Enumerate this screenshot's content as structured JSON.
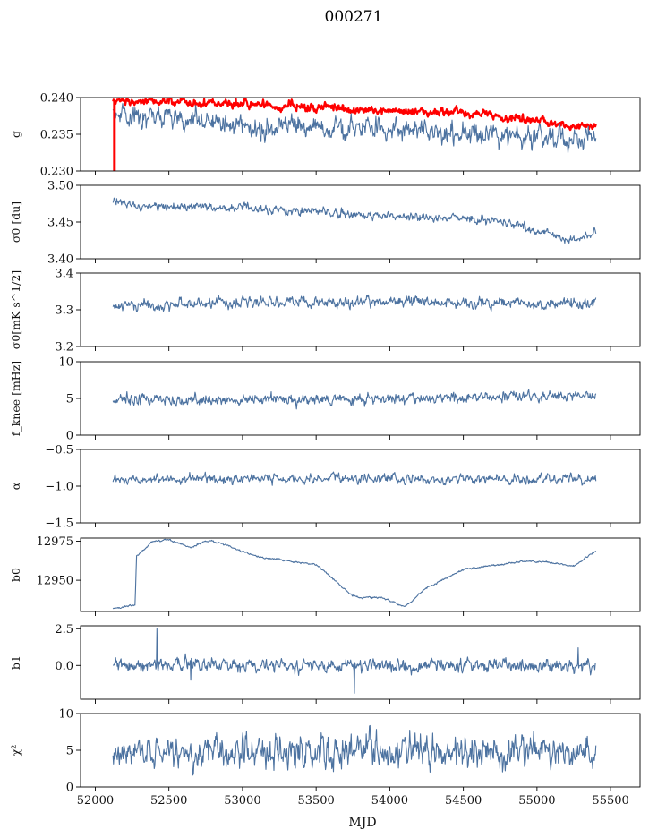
{
  "title": "000271",
  "chart_data": {
    "type": "line",
    "shared_x": true,
    "xlabel": "MJD",
    "xlim": [
      51900,
      55700
    ],
    "xticks": [
      52000,
      52500,
      53000,
      53500,
      54000,
      54500,
      55000,
      55500
    ],
    "xrange_data": [
      52120,
      55400
    ],
    "colors": {
      "series": "#4c72a0",
      "highlight": "#ff0000"
    },
    "panels": [
      {
        "id": "g",
        "ylabel": "g",
        "ylim": [
          0.23,
          0.24
        ],
        "yticks": [
          "0.240",
          "0.235",
          "0.230"
        ],
        "series": [
          {
            "color": "#ff0000",
            "linewidth": 2.2,
            "trend": [
              [
                52120,
                0.2396
              ],
              [
                52500,
                0.2395
              ],
              [
                53000,
                0.2392
              ],
              [
                53500,
                0.2386
              ],
              [
                54000,
                0.2381
              ],
              [
                54500,
                0.2379
              ],
              [
                55000,
                0.2368
              ],
              [
                55200,
                0.2363
              ],
              [
                55400,
                0.2362
              ]
            ],
            "noise": 0.00035
          },
          {
            "color": "#4c72a0",
            "linewidth": 1.1,
            "trend": [
              [
                52120,
                0.2378
              ],
              [
                52500,
                0.2373
              ],
              [
                53000,
                0.2362
              ],
              [
                53500,
                0.236
              ],
              [
                54000,
                0.2355
              ],
              [
                54500,
                0.2352
              ],
              [
                55000,
                0.2345
              ],
              [
                55200,
                0.2342
              ],
              [
                55400,
                0.2346
              ]
            ],
            "noise": 0.0009
          }
        ]
      },
      {
        "id": "sigma0_du",
        "ylabel": "σ0 [du]",
        "ylim": [
          3.4,
          3.5
        ],
        "yticks": [
          "3.50",
          "3.45",
          "3.40"
        ],
        "series": [
          {
            "color": "#4c72a0",
            "linewidth": 1.1,
            "trend": [
              [
                52120,
                3.48
              ],
              [
                52300,
                3.472
              ],
              [
                53000,
                3.47
              ],
              [
                53500,
                3.463
              ],
              [
                54000,
                3.458
              ],
              [
                54500,
                3.455
              ],
              [
                54800,
                3.45
              ],
              [
                55000,
                3.438
              ],
              [
                55250,
                3.425
              ],
              [
                55400,
                3.438
              ]
            ],
            "noise": 0.0035
          }
        ]
      },
      {
        "id": "sigma0_mK",
        "ylabel": "σ0[mK s^1/2]",
        "ylim": [
          3.2,
          3.4
        ],
        "yticks": [
          "3.4",
          "3.3",
          "3.2"
        ],
        "series": [
          {
            "color": "#4c72a0",
            "linewidth": 1.1,
            "trend": [
              [
                52120,
                3.31
              ],
              [
                53000,
                3.32
              ],
              [
                54000,
                3.32
              ],
              [
                55000,
                3.318
              ],
              [
                55400,
                3.32
              ]
            ],
            "noise": 0.009
          }
        ]
      },
      {
        "id": "fknee",
        "ylabel": "f_knee [mHz]",
        "ylim": [
          0,
          10
        ],
        "yticks": [
          "10",
          "5",
          "0"
        ],
        "series": [
          {
            "color": "#4c72a0",
            "linewidth": 1.1,
            "trend": [
              [
                52120,
                4.7
              ],
              [
                53000,
                4.8
              ],
              [
                54000,
                4.9
              ],
              [
                55000,
                5.3
              ],
              [
                55400,
                5.4
              ]
            ],
            "noise": 0.45
          }
        ]
      },
      {
        "id": "alpha",
        "ylabel": "α",
        "ylim": [
          -1.5,
          -0.5
        ],
        "yticks": [
          "−0.5",
          "−1.0",
          "−1.5"
        ],
        "series": [
          {
            "color": "#4c72a0",
            "linewidth": 1.1,
            "trend": [
              [
                52120,
                -0.9
              ],
              [
                55400,
                -0.9
              ]
            ],
            "noise": 0.04
          }
        ]
      },
      {
        "id": "b0",
        "ylabel": "b0",
        "ylim": [
          12930,
          12977
        ],
        "yticks": [
          "12975",
          "12950"
        ],
        "ytick_values": [
          12975,
          12950
        ],
        "series": [
          {
            "color": "#4c72a0",
            "linewidth": 1.1,
            "trend": [
              [
                52120,
                12932
              ],
              [
                52270,
                12934
              ],
              [
                52280,
                12966
              ],
              [
                52400,
                12975
              ],
              [
                52500,
                12976
              ],
              [
                52650,
                12971
              ],
              [
                52750,
                12975
              ],
              [
                52850,
                12974
              ],
              [
                53100,
                12965
              ],
              [
                53500,
                12960
              ],
              [
                53750,
                12940
              ],
              [
                53800,
                12939
              ],
              [
                53950,
                12939
              ],
              [
                54100,
                12933
              ],
              [
                54250,
                12945
              ],
              [
                54500,
                12957
              ],
              [
                54900,
                12962
              ],
              [
                55050,
                12962
              ],
              [
                55250,
                12959
              ],
              [
                55400,
                12969
              ]
            ],
            "noise": 0.35
          }
        ]
      },
      {
        "id": "b1",
        "ylabel": "b1",
        "ylim": [
          -2.3,
          2.7
        ],
        "yticks": [
          "2.5",
          "0.0"
        ],
        "ytick_values": [
          2.5,
          0.0
        ],
        "series": [
          {
            "color": "#4c72a0",
            "linewidth": 1.1,
            "trend": [
              [
                52120,
                0.0
              ],
              [
                55400,
                0.0
              ]
            ],
            "noise": 0.28,
            "spikes": [
              [
                52420,
                2.5
              ],
              [
                53760,
                -1.9
              ],
              [
                52650,
                -1.0
              ],
              [
                55280,
                1.2
              ]
            ]
          }
        ]
      },
      {
        "id": "chi2",
        "ylabel": "χ²",
        "ylim": [
          0,
          10
        ],
        "yticks": [
          "10",
          "5",
          "0"
        ],
        "series": [
          {
            "color": "#4c72a0",
            "linewidth": 1.1,
            "trend": [
              [
                52120,
                4.8
              ],
              [
                53000,
                4.8
              ],
              [
                54000,
                4.8
              ],
              [
                55000,
                4.8
              ],
              [
                55400,
                4.8
              ]
            ],
            "noise": 1.3
          }
        ]
      }
    ]
  }
}
